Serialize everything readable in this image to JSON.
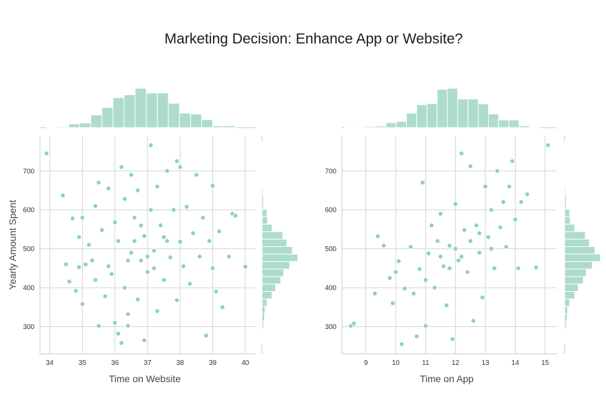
{
  "figure": {
    "title": "Marketing Decision: Enhance App or Website?",
    "colors": {
      "point_fill": "#8ed2bd",
      "point_edge": "#ffffff",
      "hist_fill": "#aedccb",
      "hist_edge": "#ffffff",
      "grid": "#d4d4d4",
      "spine": "#c9c9c9",
      "text": "#333333"
    }
  },
  "chart_data": [
    {
      "type": "scatter",
      "marginals": "histogram",
      "grid": true,
      "xlabel": "Time on Website",
      "ylabel": "Yearly Amount Spent",
      "xlim": [
        33.7,
        40.3
      ],
      "ylim": [
        230,
        790
      ],
      "xticks": [
        "34",
        "35",
        "36",
        "37",
        "38",
        "39",
        "40"
      ],
      "yticks": [
        "300",
        "400",
        "500",
        "600",
        "700"
      ],
      "x_hist": {
        "bin_start": 33.9,
        "bin_width": 0.34,
        "counts": [
          1,
          2,
          8,
          10,
          27,
          43,
          64,
          70,
          84,
          74,
          74,
          52,
          31,
          29,
          17,
          4,
          4
        ]
      },
      "y_hist": {
        "bin_start": 256,
        "bin_width": 19.2,
        "counts": [
          1,
          1,
          3,
          5,
          6,
          10,
          20,
          27,
          37,
          43,
          55,
          71,
          60,
          49,
          41,
          20,
          11,
          10,
          3,
          3,
          2,
          1,
          1,
          1,
          1,
          1,
          1
        ]
      },
      "points": [
        [
          33.9,
          745
        ],
        [
          34.4,
          637
        ],
        [
          34.5,
          460
        ],
        [
          34.6,
          416
        ],
        [
          34.7,
          578
        ],
        [
          34.8,
          392
        ],
        [
          34.9,
          530
        ],
        [
          34.9,
          453
        ],
        [
          35.0,
          580
        ],
        [
          35.0,
          358
        ],
        [
          35.1,
          460
        ],
        [
          35.2,
          510
        ],
        [
          35.3,
          470
        ],
        [
          35.4,
          610
        ],
        [
          35.4,
          420
        ],
        [
          35.5,
          670
        ],
        [
          35.5,
          302
        ],
        [
          35.6,
          548
        ],
        [
          35.7,
          378
        ],
        [
          35.8,
          655
        ],
        [
          35.8,
          455
        ],
        [
          35.9,
          435
        ],
        [
          36.0,
          568
        ],
        [
          36.0,
          310
        ],
        [
          36.1,
          520
        ],
        [
          36.1,
          282
        ],
        [
          36.2,
          258
        ],
        [
          36.2,
          710
        ],
        [
          36.3,
          628
        ],
        [
          36.3,
          400
        ],
        [
          36.4,
          332
        ],
        [
          36.4,
          302
        ],
        [
          36.5,
          690
        ],
        [
          36.5,
          490
        ],
        [
          36.6,
          580
        ],
        [
          36.7,
          650
        ],
        [
          36.7,
          370
        ],
        [
          36.8,
          470
        ],
        [
          36.9,
          533
        ],
        [
          36.9,
          265
        ],
        [
          37.0,
          440
        ],
        [
          37.1,
          766
        ],
        [
          37.1,
          600
        ],
        [
          37.2,
          495
        ],
        [
          37.3,
          660
        ],
        [
          37.3,
          340
        ],
        [
          37.4,
          560
        ],
        [
          37.5,
          420
        ],
        [
          37.6,
          700
        ],
        [
          37.6,
          520
        ],
        [
          37.7,
          478
        ],
        [
          37.8,
          600
        ],
        [
          37.9,
          725
        ],
        [
          37.9,
          368
        ],
        [
          38.0,
          710
        ],
        [
          38.0,
          518
        ],
        [
          38.1,
          455
        ],
        [
          38.2,
          608
        ],
        [
          38.3,
          410
        ],
        [
          38.4,
          540
        ],
        [
          38.5,
          690
        ],
        [
          38.6,
          480
        ],
        [
          38.7,
          580
        ],
        [
          38.8,
          277
        ],
        [
          38.9,
          520
        ],
        [
          39.0,
          662
        ],
        [
          39.0,
          450
        ],
        [
          39.1,
          390
        ],
        [
          39.2,
          545
        ],
        [
          39.3,
          350
        ],
        [
          39.5,
          480
        ],
        [
          39.6,
          590
        ],
        [
          39.7,
          585
        ],
        [
          40.0,
          454
        ],
        [
          36.6,
          520
        ],
        [
          37.0,
          480
        ],
        [
          36.8,
          560
        ],
        [
          37.2,
          450
        ],
        [
          36.4,
          470
        ],
        [
          37.5,
          530
        ]
      ]
    },
    {
      "type": "scatter",
      "marginals": "histogram",
      "grid": true,
      "xlabel": "Time on App",
      "ylabel": "",
      "xlim": [
        8.2,
        15.4
      ],
      "ylim": [
        230,
        790
      ],
      "xticks": [
        "9",
        "10",
        "11",
        "12",
        "13",
        "14",
        "15"
      ],
      "yticks": [
        "300",
        "400",
        "500",
        "600",
        "700"
      ],
      "x_hist": {
        "bin_start": 8.3,
        "bin_width": 0.343,
        "counts": [
          1,
          2,
          3,
          4,
          13,
          16,
          38,
          60,
          63,
          100,
          103,
          75,
          75,
          62,
          36,
          20,
          20,
          5,
          1
        ]
      },
      "y_hist": {
        "bin_start": 256,
        "bin_width": 19.2,
        "counts": [
          1,
          1,
          3,
          5,
          6,
          10,
          20,
          27,
          37,
          43,
          55,
          71,
          60,
          49,
          41,
          20,
          11,
          10,
          3,
          3,
          2,
          1,
          1,
          1,
          1,
          1,
          1
        ]
      },
      "points": [
        [
          8.5,
          302
        ],
        [
          8.6,
          308
        ],
        [
          9.3,
          385
        ],
        [
          9.4,
          532
        ],
        [
          9.6,
          508
        ],
        [
          9.8,
          425
        ],
        [
          9.9,
          360
        ],
        [
          10.0,
          440
        ],
        [
          10.1,
          468
        ],
        [
          10.2,
          255
        ],
        [
          10.3,
          398
        ],
        [
          10.5,
          505
        ],
        [
          10.6,
          385
        ],
        [
          10.7,
          275
        ],
        [
          10.8,
          448
        ],
        [
          10.9,
          670
        ],
        [
          11.0,
          302
        ],
        [
          11.1,
          488
        ],
        [
          11.2,
          560
        ],
        [
          11.3,
          400
        ],
        [
          11.4,
          520
        ],
        [
          11.5,
          590
        ],
        [
          11.6,
          455
        ],
        [
          11.7,
          355
        ],
        [
          11.8,
          508
        ],
        [
          11.9,
          268
        ],
        [
          12.0,
          615
        ],
        [
          12.1,
          470
        ],
        [
          12.2,
          745
        ],
        [
          12.3,
          548
        ],
        [
          12.4,
          440
        ],
        [
          12.5,
          712
        ],
        [
          12.6,
          315
        ],
        [
          12.7,
          560
        ],
        [
          12.8,
          490
        ],
        [
          12.9,
          375
        ],
        [
          13.0,
          660
        ],
        [
          13.1,
          530
        ],
        [
          13.2,
          600
        ],
        [
          13.3,
          450
        ],
        [
          13.4,
          700
        ],
        [
          13.5,
          555
        ],
        [
          13.6,
          620
        ],
        [
          13.7,
          505
        ],
        [
          13.8,
          660
        ],
        [
          13.9,
          725
        ],
        [
          14.0,
          575
        ],
        [
          14.1,
          450
        ],
        [
          14.2,
          620
        ],
        [
          14.4,
          640
        ],
        [
          14.7,
          452
        ],
        [
          15.1,
          766
        ],
        [
          11.5,
          480
        ],
        [
          12.0,
          500
        ],
        [
          12.5,
          520
        ],
        [
          12.2,
          480
        ],
        [
          11.8,
          450
        ],
        [
          12.8,
          540
        ],
        [
          11.0,
          420
        ],
        [
          13.2,
          500
        ]
      ]
    }
  ]
}
